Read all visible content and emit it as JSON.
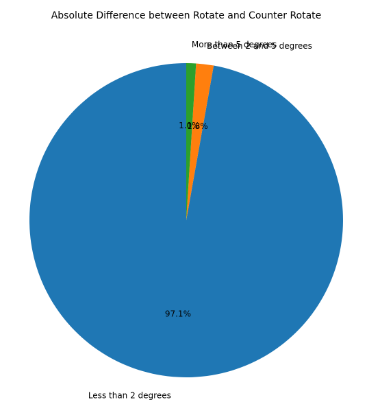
{
  "chart_data": {
    "type": "pie",
    "title": "Absolute Difference between Rotate and Counter Rotate",
    "categories": [
      "Less than 2 degrees",
      "Between 2 and 5 degrees",
      "More than 5 degrees"
    ],
    "values": [
      97.1,
      1.8,
      1.0
    ],
    "percent_labels": [
      "97.1%",
      "1.8%",
      "1.0%"
    ],
    "colors": [
      "#1f77b4",
      "#ff7f0e",
      "#2ca02c"
    ],
    "start_angle_deg": 90,
    "direction": "counterclockwise"
  }
}
